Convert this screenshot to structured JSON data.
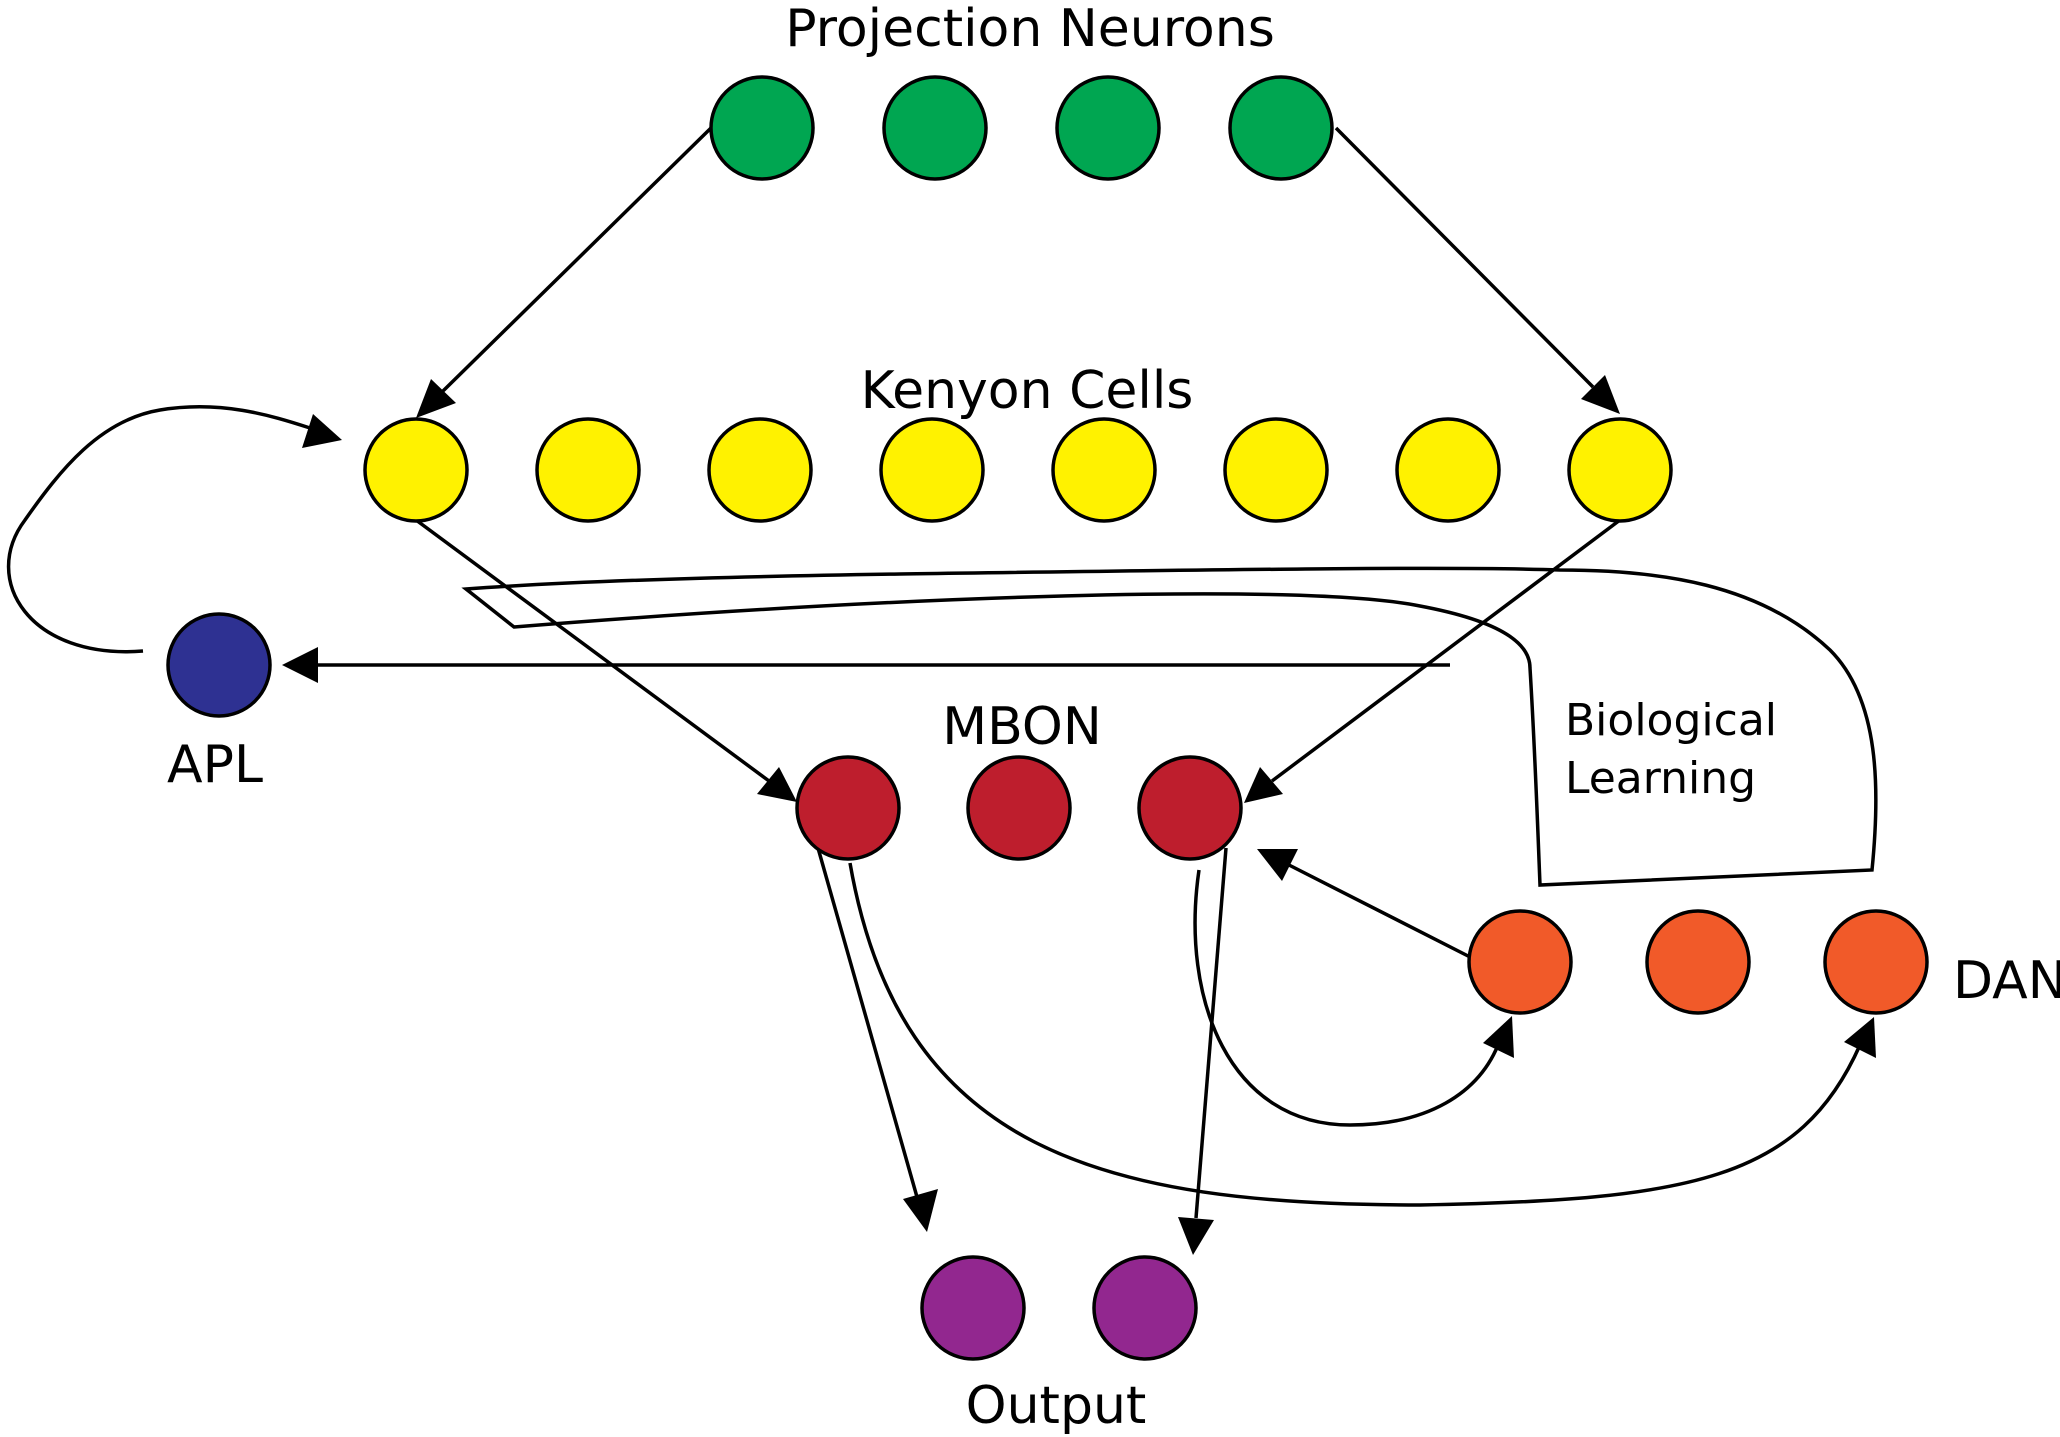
{
  "labels": {
    "projection_neurons": "Projection Neurons",
    "kenyon_cells": "Kenyon Cells",
    "apl": "APL",
    "mbon": "MBON",
    "biological_learning_line1": "Biological",
    "biological_learning_line2": "Learning",
    "dan": "DAN",
    "output": "Output"
  },
  "groups": {
    "projection_neurons": {
      "count": 4,
      "color": "#00A651"
    },
    "kenyon_cells": {
      "count": 8,
      "color": "#FFF200"
    },
    "apl": {
      "count": 1,
      "color": "#2E3192"
    },
    "mbon": {
      "count": 3,
      "color": "#BE1E2D"
    },
    "dan": {
      "count": 3,
      "color": "#F15A29"
    },
    "output": {
      "count": 2,
      "color": "#92278F"
    }
  }
}
